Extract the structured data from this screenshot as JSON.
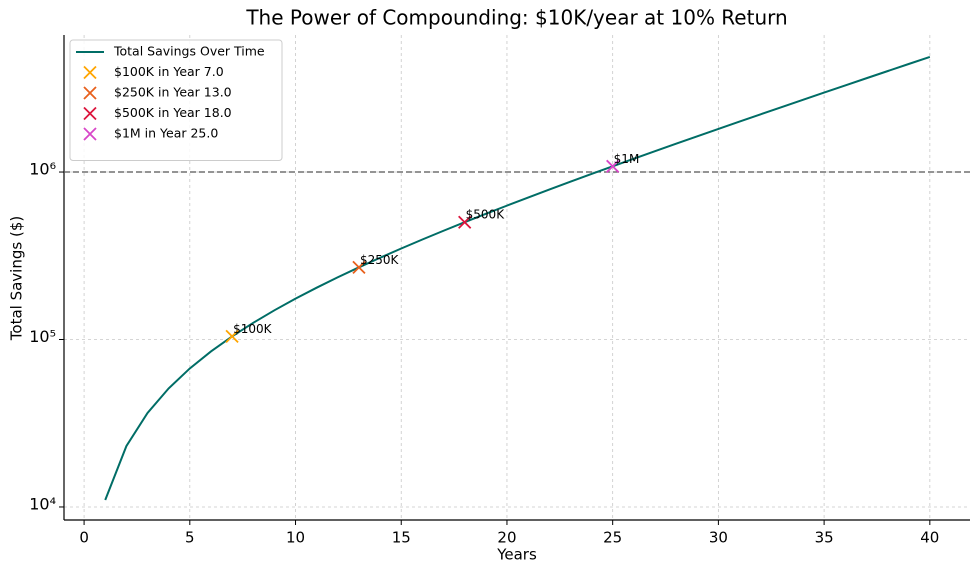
{
  "chart_data": {
    "type": "line",
    "title": "The Power of Compounding: $10K/year at 10% Return",
    "x_label": "Years",
    "y_label": "Total Savings ($)",
    "x": [
      1,
      2,
      3,
      4,
      5,
      6,
      7,
      8,
      9,
      10,
      11,
      12,
      13,
      14,
      15,
      16,
      17,
      18,
      19,
      20,
      21,
      22,
      23,
      24,
      25,
      26,
      27,
      28,
      29,
      30,
      31,
      32,
      33,
      34,
      35,
      36,
      37,
      38,
      39,
      40
    ],
    "series": [
      {
        "name": "Total Savings Over Time",
        "color": "#006d66",
        "values": [
          11000,
          23100,
          36410,
          51051,
          67156,
          84872,
          104359,
          125795,
          149374,
          175312,
          203843,
          235227,
          269750,
          307725,
          349497,
          395447,
          445992,
          501591,
          562750,
          630025,
          704028,
          785430,
          874973,
          973471,
          1081818,
          1200999,
          1332099,
          1476309,
          1634940,
          1809434,
          2001378,
          2212515,
          2444767,
          2700244,
          2981268,
          3290395,
          3630434,
          4004478,
          4415926,
          4868518
        ]
      }
    ],
    "markers": [
      {
        "name": "$100K in Year 7.0",
        "color": "#ffa500",
        "x": 7,
        "y": 104359,
        "label": "$100K"
      },
      {
        "name": "$250K in Year 13.0",
        "color": "#e8601c",
        "x": 13,
        "y": 269750,
        "label": "$250K"
      },
      {
        "name": "$500K in Year 18.0",
        "color": "#dc143c",
        "x": 18,
        "y": 501591,
        "label": "$500K"
      },
      {
        "name": "$1M in Year 25.0",
        "color": "#d846c8",
        "x": 25,
        "y": 1081818,
        "label": "$1M"
      }
    ],
    "reference_line": 1000000,
    "log_y": true,
    "grid": true,
    "xlim": [
      -0.95,
      41.9
    ],
    "xticks": [
      0,
      5,
      10,
      15,
      20,
      25,
      30,
      35,
      40
    ],
    "ylim": [
      8360,
      6580000
    ],
    "yticks": [
      {
        "value": 10000,
        "label": "10⁴"
      },
      {
        "value": 100000,
        "label": "10⁵"
      },
      {
        "value": 1000000,
        "label": "10⁶"
      }
    ],
    "legend": "upper left"
  }
}
